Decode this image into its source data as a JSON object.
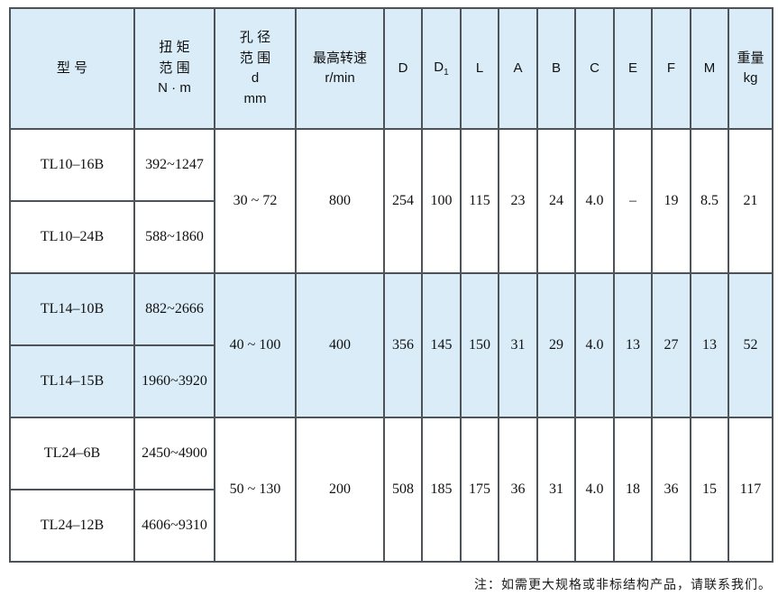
{
  "colors": {
    "header_bg": "#d9ecf8",
    "shade_row_bg": "#d9ecf8",
    "grid_border": "#4d5359",
    "page_bg": "#ffffff"
  },
  "table": {
    "headers": [
      {
        "id": "model",
        "lines": [
          "型 号"
        ]
      },
      {
        "id": "torque-range",
        "lines": [
          "扭 矩",
          "范 围",
          "N · m"
        ]
      },
      {
        "id": "bore-range",
        "lines": [
          "孔 径",
          "范 围",
          "d",
          "mm"
        ]
      },
      {
        "id": "max-speed",
        "lines": [
          "最高转速",
          "r/min"
        ]
      },
      {
        "id": "D",
        "lines": [
          "D"
        ]
      },
      {
        "id": "D1",
        "lines": [
          "D"
        ],
        "sub": "1"
      },
      {
        "id": "L",
        "lines": [
          "L"
        ]
      },
      {
        "id": "A",
        "lines": [
          "A"
        ]
      },
      {
        "id": "B",
        "lines": [
          "B"
        ]
      },
      {
        "id": "C",
        "lines": [
          "C"
        ]
      },
      {
        "id": "E",
        "lines": [
          "E"
        ]
      },
      {
        "id": "F",
        "lines": [
          "F"
        ]
      },
      {
        "id": "M",
        "lines": [
          "M"
        ]
      },
      {
        "id": "weight",
        "lines": [
          "重量",
          "kg"
        ]
      }
    ],
    "groups": [
      {
        "shade": false,
        "models": [
          {
            "name": "TL10–16B",
            "torque": "392~1247"
          },
          {
            "name": "TL10–24B",
            "torque": "588~1860"
          }
        ],
        "bore": "30 ~ 72",
        "speed": "800",
        "values": [
          "254",
          "100",
          "115",
          "23",
          "24",
          "4.0",
          "–",
          "19",
          "8.5",
          "21"
        ]
      },
      {
        "shade": true,
        "models": [
          {
            "name": "TL14–10B",
            "torque": "882~2666"
          },
          {
            "name": "TL14–15B",
            "torque": "1960~3920"
          }
        ],
        "bore": "40 ~ 100",
        "speed": "400",
        "values": [
          "356",
          "145",
          "150",
          "31",
          "29",
          "4.0",
          "13",
          "27",
          "13",
          "52"
        ]
      },
      {
        "shade": false,
        "models": [
          {
            "name": "TL24–6B",
            "torque": "2450~4900"
          },
          {
            "name": "TL24–12B",
            "torque": "4606~9310"
          }
        ],
        "bore": "50 ~ 130",
        "speed": "200",
        "values": [
          "508",
          "185",
          "175",
          "36",
          "31",
          "4.0",
          "18",
          "36",
          "15",
          "117"
        ]
      }
    ]
  },
  "note": "注：如需更大规格或非标结构产品，请联系我们。"
}
